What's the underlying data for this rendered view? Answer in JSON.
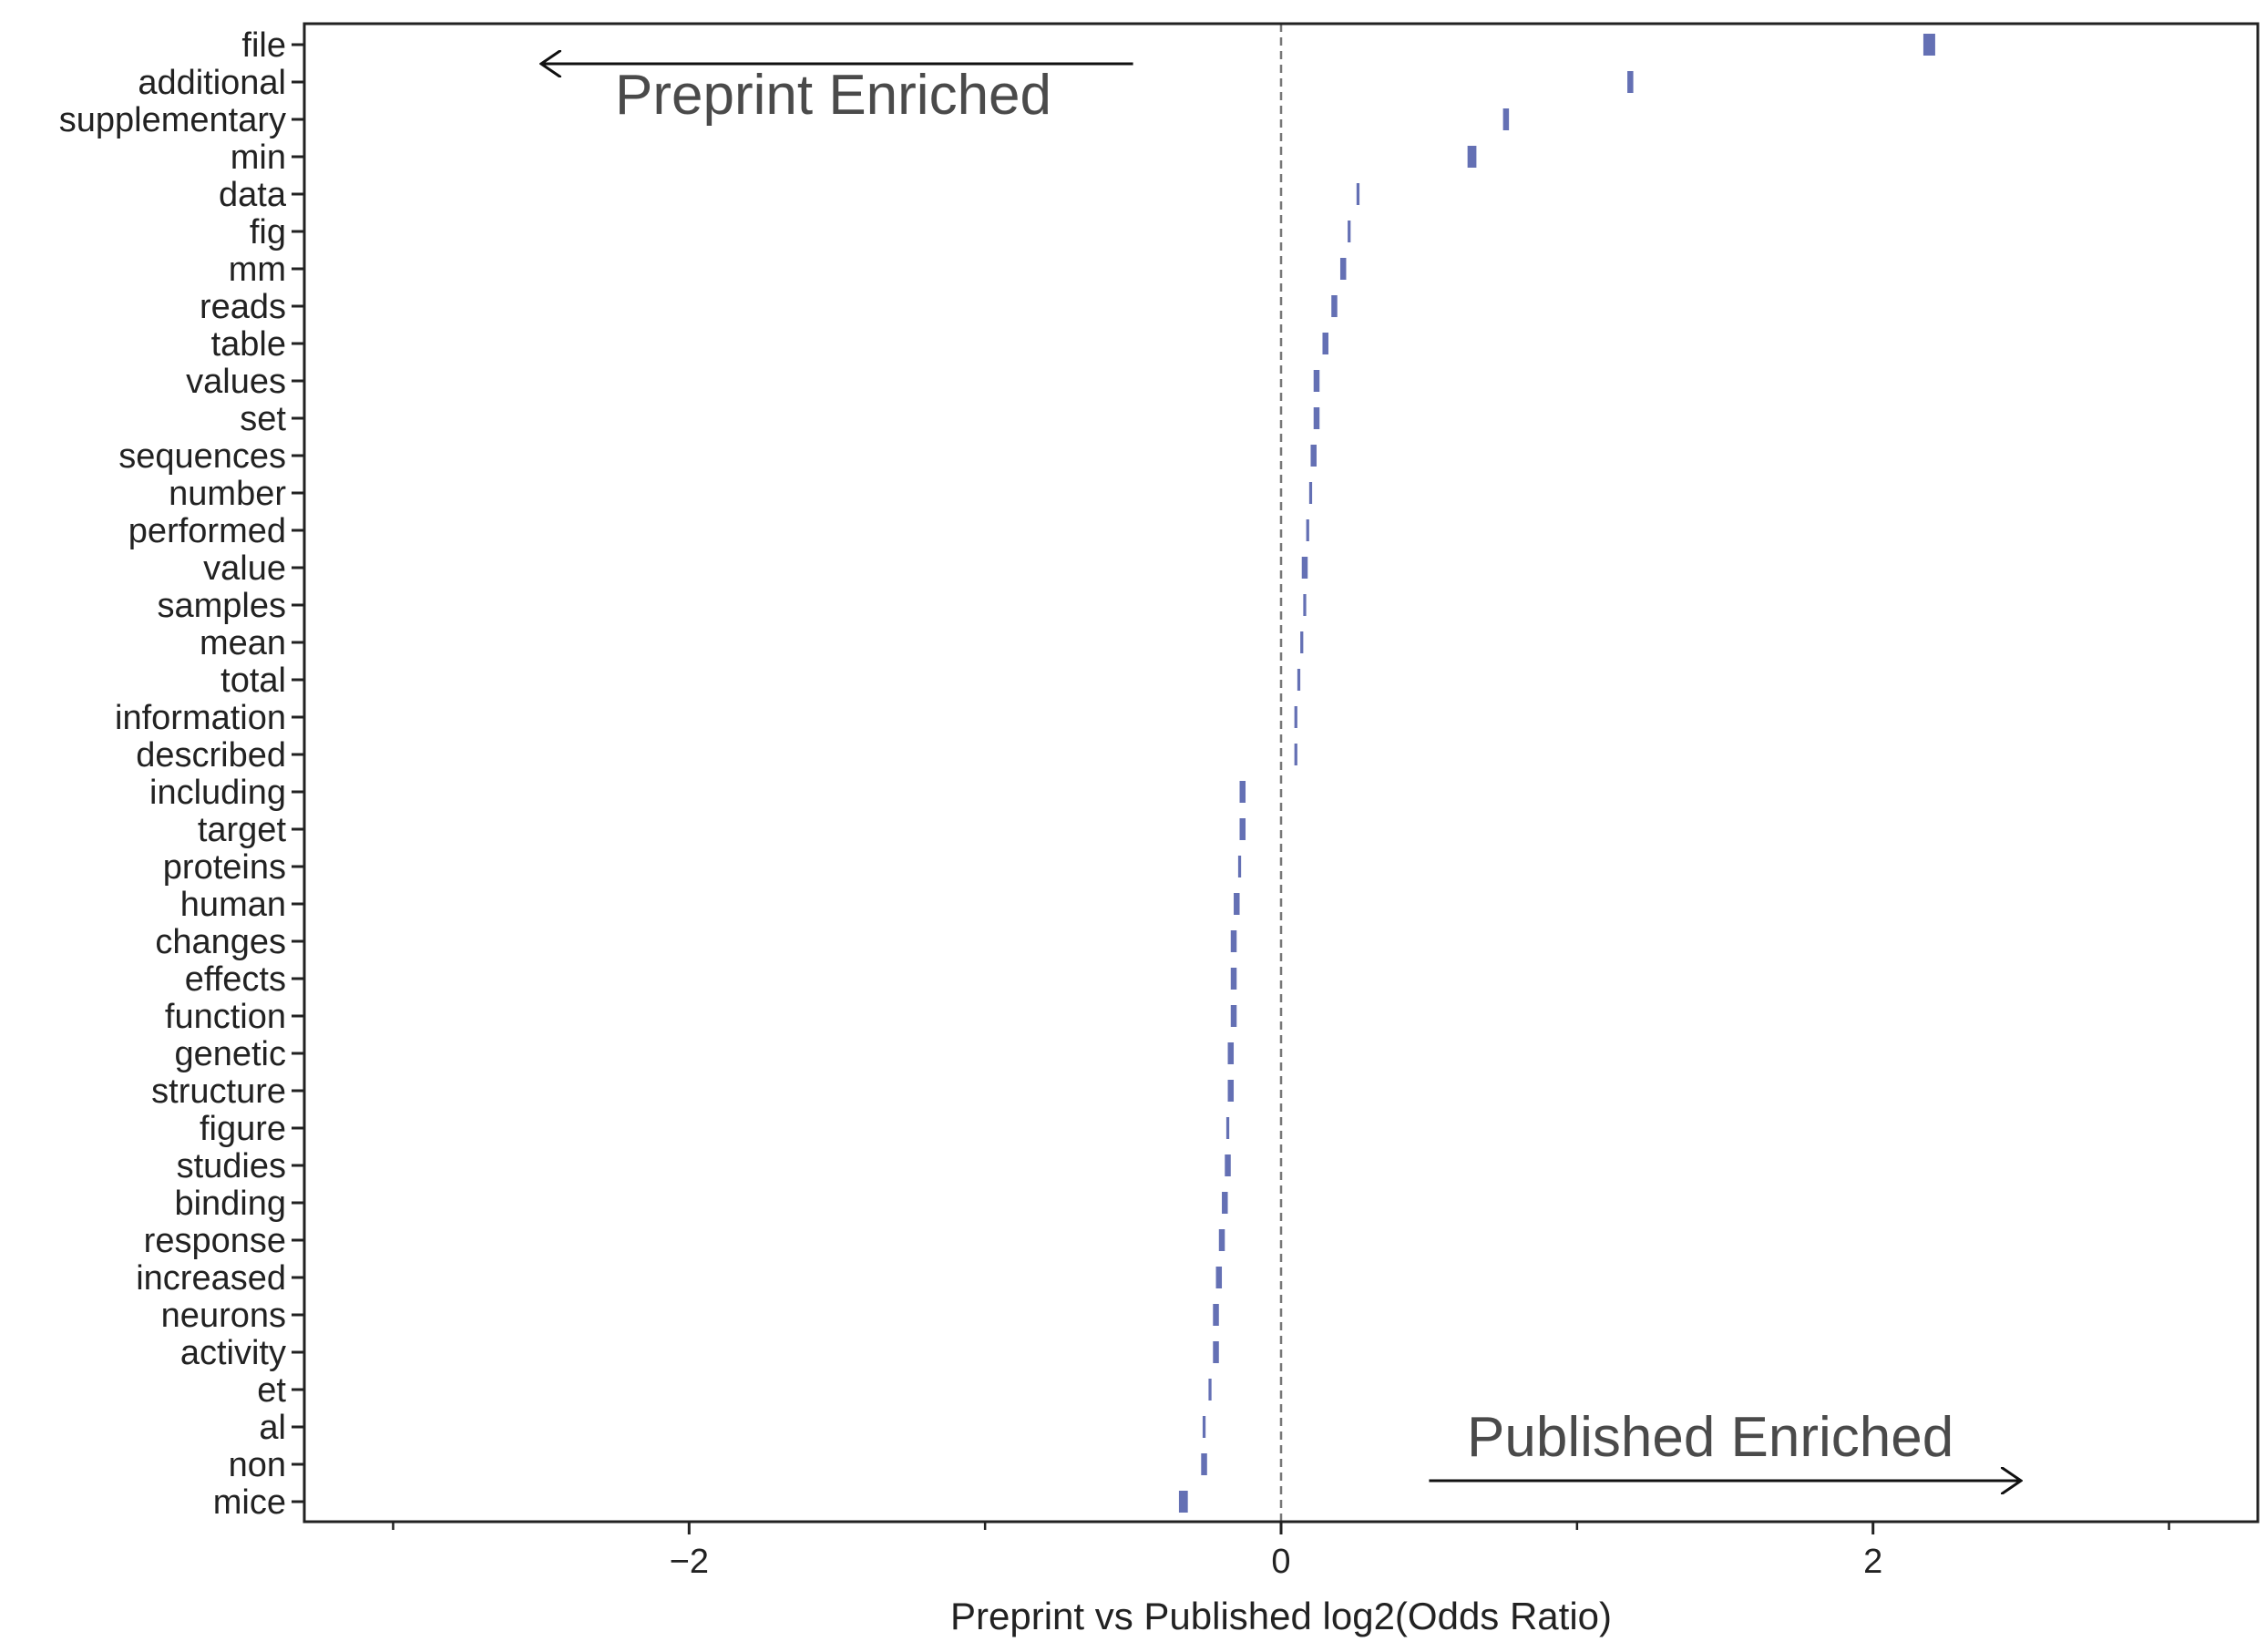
{
  "chart_data": {
    "type": "scatter",
    "xlabel": "Preprint vs Published log2(Odds Ratio)",
    "ylabel": "",
    "xlim": [
      -3.3,
      3.3
    ],
    "xticks": [
      {
        "value": -2,
        "label": "−2"
      },
      {
        "value": 0,
        "label": "0"
      },
      {
        "value": 2,
        "label": "2"
      }
    ],
    "minor_xticks": [
      -3,
      -1,
      1,
      3
    ],
    "grid": false,
    "reference_line": {
      "x": 0,
      "style": "dashed",
      "color": "#777777"
    },
    "marker_color": "#6470b4",
    "annotations": {
      "preprint": {
        "text": "Preprint Enriched",
        "direction": "left"
      },
      "published": {
        "text": "Published  Enriched",
        "direction": "right"
      }
    },
    "points": [
      {
        "label": "file",
        "value": 2.19,
        "low": 2.17,
        "high": 2.21
      },
      {
        "label": "additional",
        "value": 1.18,
        "low": 1.17,
        "high": 1.19
      },
      {
        "label": "supplementary",
        "value": 0.76,
        "low": 0.75,
        "high": 0.77
      },
      {
        "label": "min",
        "value": 0.65,
        "low": 0.63,
        "high": 0.66
      },
      {
        "label": "data",
        "value": 0.26,
        "low": 0.255,
        "high": 0.265
      },
      {
        "label": "fig",
        "value": 0.23,
        "low": 0.225,
        "high": 0.235
      },
      {
        "label": "mm",
        "value": 0.21,
        "low": 0.2,
        "high": 0.22
      },
      {
        "label": "reads",
        "value": 0.18,
        "low": 0.17,
        "high": 0.19
      },
      {
        "label": "table",
        "value": 0.15,
        "low": 0.14,
        "high": 0.16
      },
      {
        "label": "values",
        "value": 0.12,
        "low": 0.11,
        "high": 0.13
      },
      {
        "label": "set",
        "value": 0.12,
        "low": 0.11,
        "high": 0.13
      },
      {
        "label": "sequences",
        "value": 0.11,
        "low": 0.1,
        "high": 0.12
      },
      {
        "label": "number",
        "value": 0.1,
        "low": 0.095,
        "high": 0.105
      },
      {
        "label": "performed",
        "value": 0.09,
        "low": 0.085,
        "high": 0.095
      },
      {
        "label": "value",
        "value": 0.08,
        "low": 0.07,
        "high": 0.09
      },
      {
        "label": "samples",
        "value": 0.08,
        "low": 0.075,
        "high": 0.085
      },
      {
        "label": "mean",
        "value": 0.07,
        "low": 0.065,
        "high": 0.075
      },
      {
        "label": "total",
        "value": 0.06,
        "low": 0.055,
        "high": 0.065
      },
      {
        "label": "information",
        "value": 0.05,
        "low": 0.045,
        "high": 0.055
      },
      {
        "label": "described",
        "value": 0.05,
        "low": 0.045,
        "high": 0.055
      },
      {
        "label": "including",
        "value": -0.13,
        "low": -0.14,
        "high": -0.12
      },
      {
        "label": "target",
        "value": -0.13,
        "low": -0.14,
        "high": -0.12
      },
      {
        "label": "proteins",
        "value": -0.14,
        "low": -0.145,
        "high": -0.135
      },
      {
        "label": "human",
        "value": -0.15,
        "low": -0.16,
        "high": -0.14
      },
      {
        "label": "changes",
        "value": -0.16,
        "low": -0.17,
        "high": -0.15
      },
      {
        "label": "effects",
        "value": -0.16,
        "low": -0.17,
        "high": -0.15
      },
      {
        "label": "function",
        "value": -0.16,
        "low": -0.17,
        "high": -0.15
      },
      {
        "label": "genetic",
        "value": -0.17,
        "low": -0.18,
        "high": -0.16
      },
      {
        "label": "structure",
        "value": -0.17,
        "low": -0.18,
        "high": -0.16
      },
      {
        "label": "figure",
        "value": -0.18,
        "low": -0.185,
        "high": -0.175
      },
      {
        "label": "studies",
        "value": -0.18,
        "low": -0.19,
        "high": -0.17
      },
      {
        "label": "binding",
        "value": -0.19,
        "low": -0.2,
        "high": -0.18
      },
      {
        "label": "response",
        "value": -0.2,
        "low": -0.21,
        "high": -0.19
      },
      {
        "label": "increased",
        "value": -0.21,
        "low": -0.22,
        "high": -0.2
      },
      {
        "label": "neurons",
        "value": -0.22,
        "low": -0.23,
        "high": -0.21
      },
      {
        "label": "activity",
        "value": -0.22,
        "low": -0.23,
        "high": -0.21
      },
      {
        "label": "et",
        "value": -0.24,
        "low": -0.245,
        "high": -0.235
      },
      {
        "label": "al",
        "value": -0.26,
        "low": -0.265,
        "high": -0.255
      },
      {
        "label": "non",
        "value": -0.26,
        "low": -0.27,
        "high": -0.25
      },
      {
        "label": "mice",
        "value": -0.33,
        "low": -0.345,
        "high": -0.315
      }
    ]
  }
}
